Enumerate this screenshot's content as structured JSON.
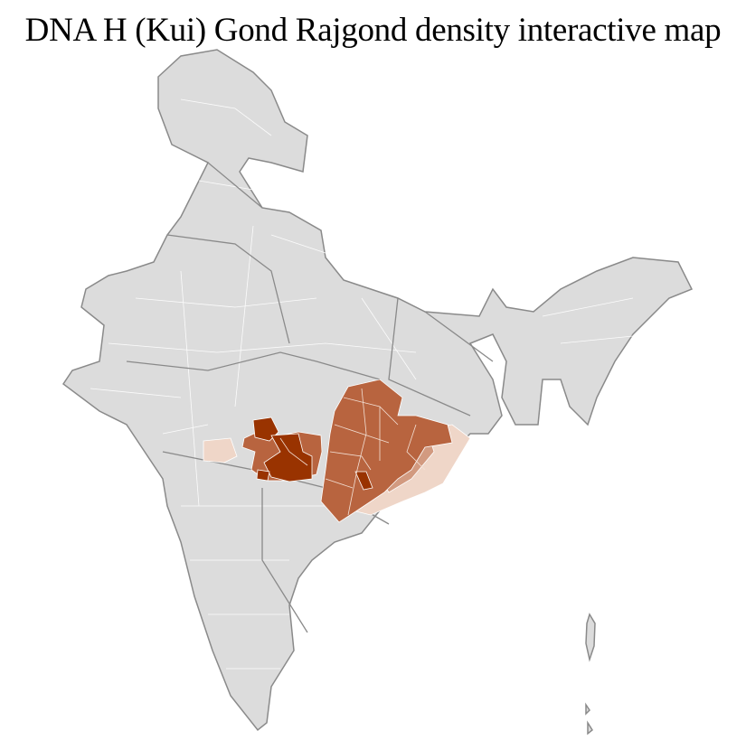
{
  "title": "DNA H (Kui) Gond Rajgond density interactive map",
  "colors": {
    "background_region": "#dcdcdc",
    "region_border": "#ffffff",
    "state_border": "#8a8a8a",
    "density_high": "#993300",
    "density_medium": "#b8643f",
    "density_low_medium": "#d29a80",
    "density_low": "#efd6c8"
  }
}
